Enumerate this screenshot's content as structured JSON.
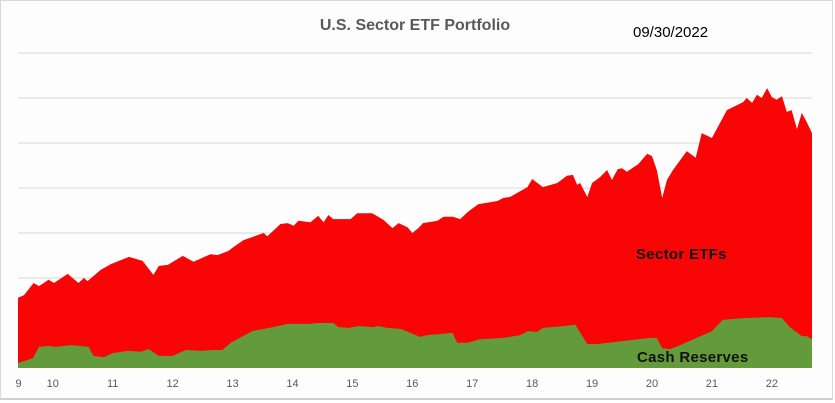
{
  "chart_data": {
    "type": "area",
    "stacked": true,
    "title": "U.S. Sector ETF Portfolio",
    "date_label": "09/30/2022",
    "xlabel": "",
    "ylabel": "",
    "xlim": [
      9.42,
      22.67
    ],
    "ylim": [
      0,
      7
    ],
    "y_units_note": "relative (no y-axis labels shown); one unit per gridline",
    "grid": true,
    "x_ticks": [
      {
        "label": "9",
        "at": 9.43
      },
      {
        "label": "10",
        "at": 10
      },
      {
        "label": "11",
        "at": 11
      },
      {
        "label": "12",
        "at": 12
      },
      {
        "label": "13",
        "at": 13
      },
      {
        "label": "14",
        "at": 14
      },
      {
        "label": "15",
        "at": 15
      },
      {
        "label": "16",
        "at": 16
      },
      {
        "label": "17",
        "at": 17
      },
      {
        "label": "18",
        "at": 18
      },
      {
        "label": "19",
        "at": 19
      },
      {
        "label": "20",
        "at": 20
      },
      {
        "label": "21",
        "at": 21
      },
      {
        "label": "22",
        "at": 22
      }
    ],
    "series": [
      {
        "name": "Sector ETFs",
        "color": "#fa0505",
        "note": "values are stacked totals (top edge of red area)",
        "x": [
          9.42,
          9.52,
          9.68,
          9.77,
          9.93,
          10.02,
          10.25,
          10.43,
          10.52,
          10.58,
          10.8,
          10.97,
          11.27,
          11.5,
          11.68,
          11.77,
          11.92,
          12.17,
          12.35,
          12.63,
          12.75,
          12.93,
          13.02,
          13.18,
          13.52,
          13.58,
          13.8,
          13.92,
          14.02,
          14.1,
          14.3,
          14.43,
          14.52,
          14.6,
          14.68,
          14.97,
          15.08,
          15.33,
          15.52,
          15.67,
          15.77,
          15.92,
          16.0,
          16.1,
          16.18,
          16.42,
          16.52,
          16.68,
          16.8,
          16.93,
          17.1,
          17.42,
          17.52,
          17.63,
          17.92,
          18.0,
          18.18,
          18.42,
          18.58,
          18.68,
          18.75,
          18.8,
          18.92,
          19.0,
          19.13,
          19.25,
          19.33,
          19.43,
          19.5,
          19.58,
          19.77,
          19.92,
          20.0,
          20.08,
          20.17,
          20.25,
          20.35,
          20.58,
          20.73,
          20.83,
          21.0,
          21.25,
          21.52,
          21.58,
          21.67,
          21.75,
          21.83,
          21.92,
          22.0,
          22.08,
          22.17,
          22.25,
          22.33,
          22.42,
          22.5,
          22.58,
          22.67
        ],
        "values": [
          1.56,
          1.62,
          1.89,
          1.82,
          1.96,
          1.89,
          2.09,
          1.89,
          2.0,
          1.93,
          2.18,
          2.31,
          2.47,
          2.38,
          2.07,
          2.27,
          2.29,
          2.49,
          2.36,
          2.53,
          2.51,
          2.6,
          2.69,
          2.84,
          3.0,
          2.93,
          3.2,
          3.22,
          3.16,
          3.27,
          3.24,
          3.38,
          3.24,
          3.4,
          3.31,
          3.31,
          3.44,
          3.44,
          3.29,
          3.11,
          3.22,
          3.13,
          3.0,
          3.11,
          3.22,
          3.27,
          3.36,
          3.36,
          3.31,
          3.47,
          3.64,
          3.71,
          3.78,
          3.8,
          4.02,
          4.2,
          4.02,
          4.11,
          4.27,
          4.29,
          4.07,
          4.11,
          3.8,
          4.11,
          4.24,
          4.4,
          4.18,
          4.42,
          4.44,
          4.36,
          4.53,
          4.76,
          4.71,
          4.4,
          3.78,
          4.18,
          4.4,
          4.82,
          4.67,
          5.22,
          5.11,
          5.73,
          5.91,
          6.0,
          5.89,
          6.07,
          6.0,
          6.22,
          6.02,
          5.96,
          6.04,
          5.69,
          5.73,
          5.31,
          5.67,
          5.47,
          5.22
        ]
      },
      {
        "name": "Cash Reserves",
        "color": "#639a3c",
        "x": [
          9.42,
          9.67,
          9.77,
          9.93,
          10.05,
          10.3,
          10.6,
          10.68,
          10.85,
          11.0,
          11.25,
          11.47,
          11.6,
          11.77,
          12.0,
          12.22,
          12.47,
          12.67,
          12.83,
          12.97,
          13.33,
          13.52,
          13.68,
          13.92,
          14.3,
          14.42,
          14.68,
          14.77,
          14.93,
          15.1,
          15.33,
          15.43,
          15.58,
          15.8,
          15.97,
          16.13,
          16.25,
          16.67,
          16.75,
          16.92,
          17.13,
          17.52,
          17.8,
          17.93,
          18.08,
          18.18,
          18.52,
          18.72,
          18.92,
          19.08,
          19.52,
          19.97,
          20.08,
          20.17,
          20.3,
          20.47,
          20.85,
          21.0,
          21.18,
          21.52,
          21.97,
          22.17,
          22.3,
          22.5,
          22.58,
          22.67
        ],
        "values": [
          0.11,
          0.22,
          0.47,
          0.49,
          0.47,
          0.51,
          0.47,
          0.27,
          0.24,
          0.33,
          0.38,
          0.36,
          0.42,
          0.27,
          0.27,
          0.4,
          0.38,
          0.4,
          0.4,
          0.56,
          0.82,
          0.87,
          0.91,
          0.98,
          0.98,
          1.0,
          1.0,
          0.91,
          0.89,
          0.93,
          0.91,
          0.93,
          0.89,
          0.87,
          0.78,
          0.69,
          0.73,
          0.78,
          0.56,
          0.56,
          0.64,
          0.67,
          0.73,
          0.82,
          0.8,
          0.89,
          0.93,
          0.96,
          0.53,
          0.53,
          0.6,
          0.67,
          0.67,
          0.44,
          0.42,
          0.51,
          0.73,
          0.82,
          1.07,
          1.11,
          1.13,
          1.11,
          0.91,
          0.71,
          0.71,
          0.64
        ]
      }
    ],
    "annotations": [
      "Sector ETFs",
      "Cash Reserves"
    ]
  }
}
